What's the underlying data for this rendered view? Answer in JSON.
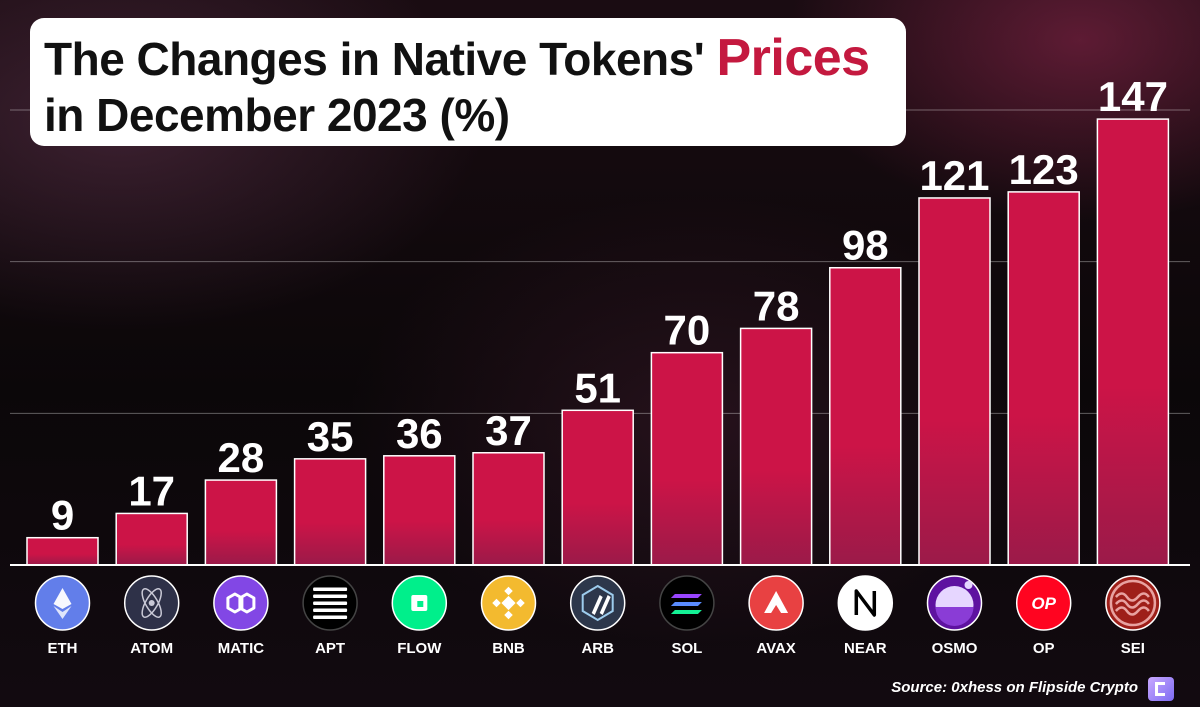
{
  "title": {
    "line1_prefix": "The Changes in Native Tokens'",
    "line1_accent": "Prices",
    "line2": "in December 2023 (%)"
  },
  "source": "Source: 0xhess on Flipside Crypto",
  "colors": {
    "bar": "#cc1447",
    "bar_bottom": "#9b1a49",
    "accent": "#c4193f"
  },
  "chart_data": {
    "type": "bar",
    "categories": [
      "ETH",
      "ATOM",
      "MATIC",
      "APT",
      "FLOW",
      "BNB",
      "ARB",
      "SOL",
      "AVAX",
      "NEAR",
      "OSMO",
      "OP",
      "SEI"
    ],
    "values": [
      9,
      17,
      28,
      35,
      36,
      37,
      51,
      70,
      78,
      98,
      121,
      123,
      147
    ],
    "title": "The Changes in Native Tokens' Prices in December 2023 (%)",
    "xlabel": "",
    "ylabel": "",
    "ylim": [
      0,
      150
    ],
    "grid": true,
    "data_labels": true,
    "legend": "none"
  },
  "tokens": [
    {
      "symbol": "ETH",
      "icon": "ethereum-icon",
      "color": "#627eea"
    },
    {
      "symbol": "ATOM",
      "icon": "cosmos-icon",
      "color": "#2e3148"
    },
    {
      "symbol": "MATIC",
      "icon": "polygon-icon",
      "color": "#8247e5"
    },
    {
      "symbol": "APT",
      "icon": "aptos-icon",
      "color": "#000000"
    },
    {
      "symbol": "FLOW",
      "icon": "flow-icon",
      "color": "#00ef8b"
    },
    {
      "symbol": "BNB",
      "icon": "bnb-icon",
      "color": "#f3ba2f"
    },
    {
      "symbol": "ARB",
      "icon": "arbitrum-icon",
      "color": "#2d374b"
    },
    {
      "symbol": "SOL",
      "icon": "solana-icon",
      "color": "#000000"
    },
    {
      "symbol": "AVAX",
      "icon": "avalanche-icon",
      "color": "#e84142"
    },
    {
      "symbol": "NEAR",
      "icon": "near-icon",
      "color": "#ffffff"
    },
    {
      "symbol": "OSMO",
      "icon": "osmosis-icon",
      "color": "#5e12a0"
    },
    {
      "symbol": "OP",
      "icon": "optimism-icon",
      "color": "#ff0420"
    },
    {
      "symbol": "SEI",
      "icon": "sei-icon",
      "color": "#9e1f19"
    }
  ]
}
